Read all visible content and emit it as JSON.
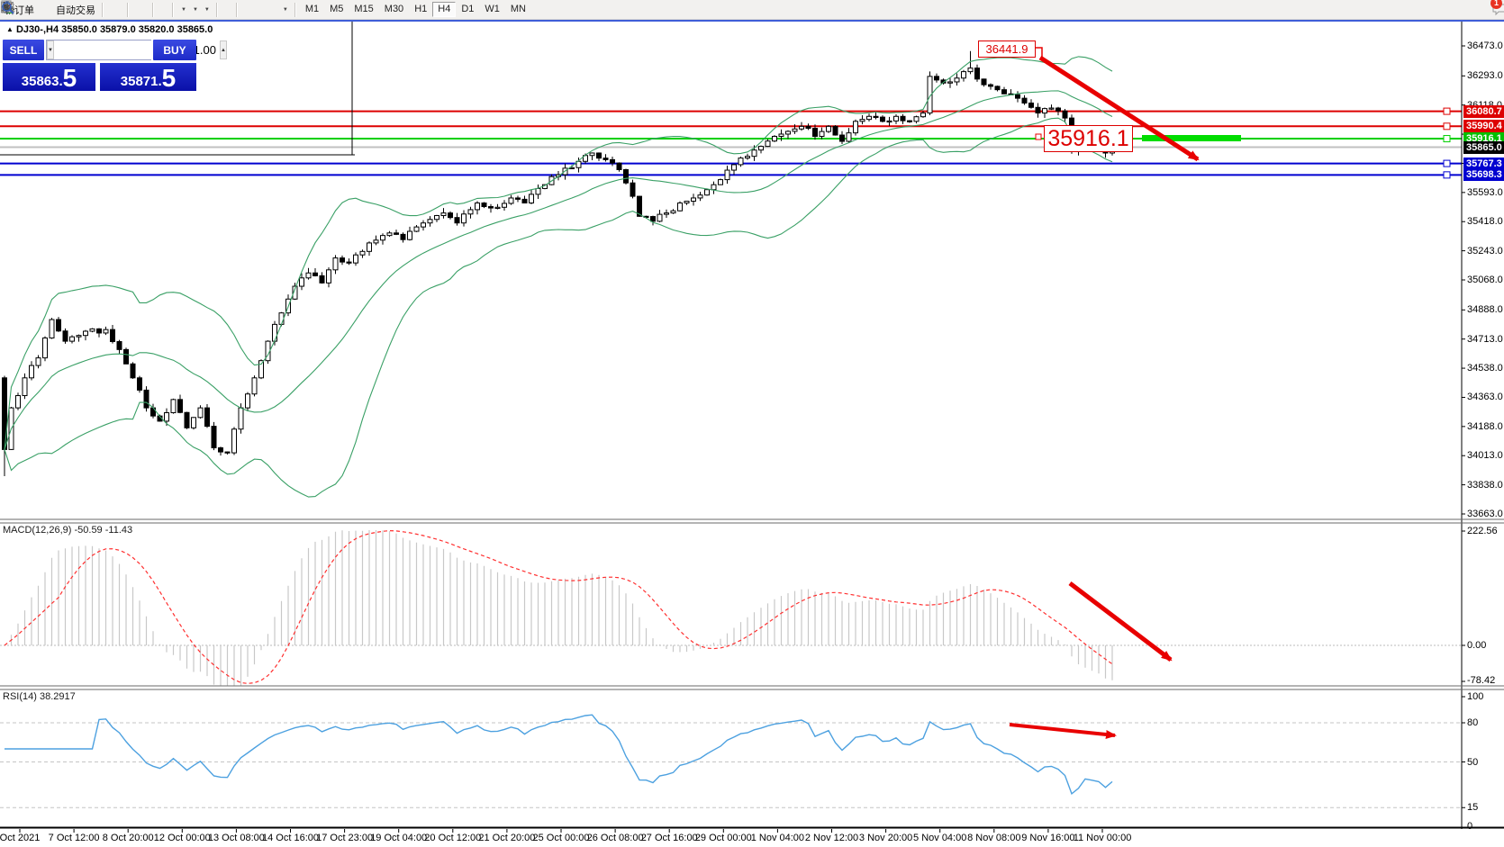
{
  "toolbar": {
    "new_order_label": "新订单",
    "auto_trading_label": "自动交易",
    "timeframes": [
      "M1",
      "M5",
      "M15",
      "M30",
      "H1",
      "H4",
      "D1",
      "W1",
      "MN"
    ],
    "active_timeframe": "H4",
    "chat_badge": "1"
  },
  "chart": {
    "symbol_title": "DJ30-,H4",
    "ohlc_line": "35850.0 35879.0 35820.0 35865.0",
    "quote_panel": {
      "sell_label": "SELL",
      "buy_label": "BUY",
      "volume": "1.00",
      "sell_price_int": "35863",
      "sell_price_frac": "5",
      "buy_price_int": "35871",
      "buy_price_frac": "5"
    },
    "price_axis_ticks": [
      36473.0,
      36293.0,
      36118.0,
      35943.0,
      35768.0,
      35593.0,
      35418.0,
      35243.0,
      35068.0,
      34888.0,
      34713.0,
      34538.0,
      34363.0,
      34188.0,
      34013.0,
      33838.0,
      33663.0
    ],
    "levels": [
      {
        "price": 36080.7,
        "label": "36080.7",
        "color": "#dd0000"
      },
      {
        "price": 35990.4,
        "label": "35990.4",
        "color": "#dd0000"
      },
      {
        "price": 35916.1,
        "label": "35916.1",
        "color": "#00c000",
        "line_color": "#00d000"
      },
      {
        "price": 35865.0,
        "label": "35865.0",
        "color": "#000000",
        "line_color": "#c0c0c0",
        "no_handle": true
      },
      {
        "price": 35767.3,
        "label": "35767.3",
        "color": "#0000d0"
      },
      {
        "price": 35698.3,
        "label": "35698.3",
        "color": "#0000d0"
      }
    ],
    "annotations": {
      "peak_label": "36441.9",
      "support_label": "35916.1"
    },
    "candle_count": 165,
    "price_waypoints": [
      [
        0,
        34050
      ],
      [
        1,
        34300
      ],
      [
        3,
        34480
      ],
      [
        5,
        34600
      ],
      [
        7,
        34830
      ],
      [
        9,
        34700
      ],
      [
        12,
        34760
      ],
      [
        15,
        34770
      ],
      [
        17,
        34650
      ],
      [
        19,
        34480
      ],
      [
        21,
        34300
      ],
      [
        23,
        34220
      ],
      [
        25,
        34350
      ],
      [
        27,
        34180
      ],
      [
        29,
        34300
      ],
      [
        31,
        34060
      ],
      [
        33,
        34030
      ],
      [
        35,
        34300
      ],
      [
        37,
        34480
      ],
      [
        39,
        34700
      ],
      [
        41,
        34870
      ],
      [
        43,
        35030
      ],
      [
        45,
        35110
      ],
      [
        47,
        35050
      ],
      [
        49,
        35200
      ],
      [
        51,
        35170
      ],
      [
        54,
        35290
      ],
      [
        57,
        35350
      ],
      [
        59,
        35310
      ],
      [
        62,
        35410
      ],
      [
        65,
        35470
      ],
      [
        67,
        35410
      ],
      [
        70,
        35530
      ],
      [
        72,
        35500
      ],
      [
        75,
        35560
      ],
      [
        77,
        35530
      ],
      [
        80,
        35640
      ],
      [
        82,
        35700
      ],
      [
        85,
        35780
      ],
      [
        87,
        35830
      ],
      [
        89,
        35790
      ],
      [
        91,
        35730
      ],
      [
        93,
        35570
      ],
      [
        94,
        35450
      ],
      [
        96,
        35420
      ],
      [
        98,
        35470
      ],
      [
        100,
        35530
      ],
      [
        102,
        35560
      ],
      [
        104,
        35610
      ],
      [
        106,
        35670
      ],
      [
        108,
        35760
      ],
      [
        110,
        35810
      ],
      [
        112,
        35870
      ],
      [
        114,
        35930
      ],
      [
        116,
        35960
      ],
      [
        118,
        35990
      ],
      [
        120,
        35930
      ],
      [
        122,
        35990
      ],
      [
        124,
        35900
      ],
      [
        126,
        36020
      ],
      [
        128,
        36050
      ],
      [
        130,
        36020
      ],
      [
        132,
        36050
      ],
      [
        134,
        36020
      ],
      [
        136,
        36070
      ],
      [
        137,
        36290
      ],
      [
        139,
        36250
      ],
      [
        141,
        36280
      ],
      [
        143,
        36340
      ],
      [
        145,
        36240
      ],
      [
        147,
        36210
      ],
      [
        149,
        36180
      ],
      [
        151,
        36130
      ],
      [
        153,
        36070
      ],
      [
        155,
        36100
      ],
      [
        157,
        36040
      ],
      [
        158,
        35840
      ],
      [
        160,
        35930
      ],
      [
        162,
        35900
      ],
      [
        163,
        35830
      ],
      [
        164,
        35865
      ]
    ],
    "peak_high": 36441.9,
    "last_close": 35865.0
  },
  "macd": {
    "label": "MACD(12,26,9)",
    "value_main": "-50.59",
    "value_signal": "-11.43",
    "axis_labels": [
      "222.56",
      "0.00",
      "-78.42"
    ]
  },
  "rsi": {
    "label": "RSI(14)",
    "value": "38.2917",
    "axis_labels": [
      "100",
      "80",
      "50",
      "15",
      "0"
    ],
    "level_lines": [
      80,
      50,
      15
    ]
  },
  "time_axis": {
    "labels": [
      "Oct 2021",
      "7 Oct 12:00",
      "8 Oct 20:00",
      "12 Oct 00:00",
      "13 Oct 08:00",
      "14 Oct 16:00",
      "17 Oct 23:00",
      "19 Oct 04:00",
      "20 Oct 12:00",
      "21 Oct 20:00",
      "25 Oct 00:00",
      "26 Oct 08:00",
      "27 Oct 16:00",
      "29 Oct 00:00",
      "1 Nov 04:00",
      "2 Nov 12:00",
      "3 Nov 20:00",
      "5 Nov 04:00",
      "8 Nov 08:00",
      "9 Nov 16:00",
      "11 Nov 00:00"
    ]
  },
  "colors": {
    "level_red": "#dd0000",
    "level_green": "#00d000",
    "level_blue": "#0000d0",
    "current_price_line": "#c0c0c0",
    "bollinger": "#3aa066",
    "macd_hist": "#c8c8c8",
    "macd_signal": "#ff3030",
    "rsi_line": "#4da1e0",
    "arrow_red": "#e80000",
    "highlight_green": "#00dd00"
  }
}
